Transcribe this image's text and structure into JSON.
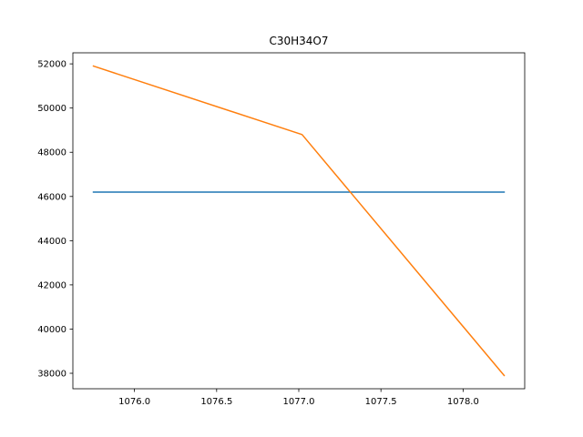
{
  "chart_data": {
    "type": "line",
    "title": "C30H34O7",
    "xlabel": "",
    "ylabel": "",
    "xlim": [
      1075.625,
      1078.375
    ],
    "ylim": [
      37300,
      52500
    ],
    "x_ticks": [
      1076.0,
      1076.5,
      1077.0,
      1077.5,
      1078.0
    ],
    "x_tick_labels": [
      "1076.0",
      "1076.5",
      "1077.0",
      "1077.5",
      "1078.0"
    ],
    "y_ticks": [
      38000,
      40000,
      42000,
      44000,
      46000,
      48000,
      50000,
      52000
    ],
    "y_tick_labels": [
      "38000",
      "40000",
      "42000",
      "44000",
      "46000",
      "48000",
      "50000",
      "52000"
    ],
    "grid": false,
    "series": [
      {
        "color": "#1f77b4",
        "x": [
          1075.75,
          1078.25
        ],
        "y": [
          46200,
          46200
        ]
      },
      {
        "color": "#ff7f0e",
        "x": [
          1075.75,
          1077.02,
          1078.25
        ],
        "y": [
          51900,
          48800,
          37900
        ]
      }
    ]
  }
}
